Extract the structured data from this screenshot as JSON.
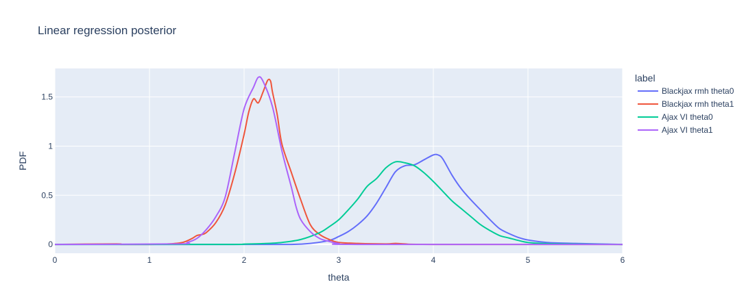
{
  "chart_data": {
    "type": "line",
    "title": "Linear regression posterior",
    "xlabel": "theta",
    "ylabel": "PDF",
    "xlim": [
      0,
      6
    ],
    "ylim": [
      -0.09,
      1.79
    ],
    "x_ticks": [
      0,
      1,
      2,
      3,
      4,
      5,
      6
    ],
    "y_ticks": [
      0,
      0.5,
      1,
      1.5
    ],
    "grid": true,
    "legend_title": "label",
    "legend_position": "right",
    "series": [
      {
        "name": "Blackjax rmh theta0",
        "color": "#636efa",
        "x": [
          0,
          2.0,
          2.5,
          2.7,
          2.9,
          3.0,
          3.1,
          3.2,
          3.3,
          3.4,
          3.5,
          3.6,
          3.7,
          3.8,
          3.9,
          4.0,
          4.05,
          4.1,
          4.2,
          4.3,
          4.4,
          4.5,
          4.6,
          4.7,
          4.8,
          4.9,
          5.0,
          5.2,
          5.5,
          6.0
        ],
        "y": [
          0,
          0,
          0,
          0.01,
          0.04,
          0.08,
          0.13,
          0.2,
          0.29,
          0.42,
          0.58,
          0.74,
          0.8,
          0.81,
          0.86,
          0.91,
          0.91,
          0.87,
          0.7,
          0.56,
          0.45,
          0.35,
          0.25,
          0.16,
          0.11,
          0.07,
          0.045,
          0.02,
          0.01,
          0
        ]
      },
      {
        "name": "Blackjax rmh theta1",
        "color": "#ef553b",
        "x": [
          0,
          0.65,
          0.7,
          1.0,
          1.2,
          1.35,
          1.45,
          1.5,
          1.55,
          1.6,
          1.7,
          1.8,
          1.9,
          2.0,
          2.05,
          2.1,
          2.15,
          2.2,
          2.25,
          2.28,
          2.3,
          2.35,
          2.4,
          2.5,
          2.6,
          2.7,
          2.8,
          2.9,
          3.0,
          3.2,
          3.5,
          3.6,
          3.7,
          4.0,
          6.0
        ],
        "y": [
          0,
          0.005,
          0,
          0,
          0.005,
          0.02,
          0.06,
          0.09,
          0.1,
          0.12,
          0.22,
          0.4,
          0.72,
          1.12,
          1.35,
          1.48,
          1.44,
          1.55,
          1.67,
          1.66,
          1.55,
          1.32,
          1.02,
          0.73,
          0.45,
          0.2,
          0.1,
          0.05,
          0.02,
          0.01,
          0.005,
          0.01,
          0.005,
          0,
          0
        ]
      },
      {
        "name": "Ajax VI theta0",
        "color": "#00cc96",
        "x": [
          0,
          1.8,
          2.0,
          2.2,
          2.4,
          2.6,
          2.8,
          2.9,
          3.0,
          3.1,
          3.2,
          3.3,
          3.4,
          3.5,
          3.6,
          3.7,
          3.8,
          3.9,
          4.0,
          4.1,
          4.2,
          4.3,
          4.4,
          4.5,
          4.6,
          4.7,
          4.8,
          4.9,
          5.0,
          5.2,
          5.5,
          6.0
        ],
        "y": [
          0,
          0,
          0.003,
          0.008,
          0.02,
          0.05,
          0.12,
          0.18,
          0.25,
          0.35,
          0.46,
          0.59,
          0.67,
          0.78,
          0.84,
          0.83,
          0.8,
          0.73,
          0.64,
          0.54,
          0.44,
          0.36,
          0.28,
          0.2,
          0.14,
          0.09,
          0.065,
          0.04,
          0.02,
          0.008,
          0.003,
          0
        ]
      },
      {
        "name": "Ajax VI theta1",
        "color": "#ab63fa",
        "x": [
          0,
          1.3,
          1.4,
          1.5,
          1.6,
          1.7,
          1.8,
          1.9,
          2.0,
          2.1,
          2.15,
          2.2,
          2.3,
          2.4,
          2.5,
          2.55,
          2.6,
          2.7,
          2.8,
          2.9,
          3.0,
          3.2,
          6.0
        ],
        "y": [
          0,
          0.005,
          0.02,
          0.06,
          0.15,
          0.28,
          0.48,
          0.93,
          1.38,
          1.6,
          1.7,
          1.66,
          1.4,
          0.95,
          0.58,
          0.38,
          0.25,
          0.13,
          0.06,
          0.03,
          0.01,
          0,
          0
        ]
      }
    ]
  }
}
